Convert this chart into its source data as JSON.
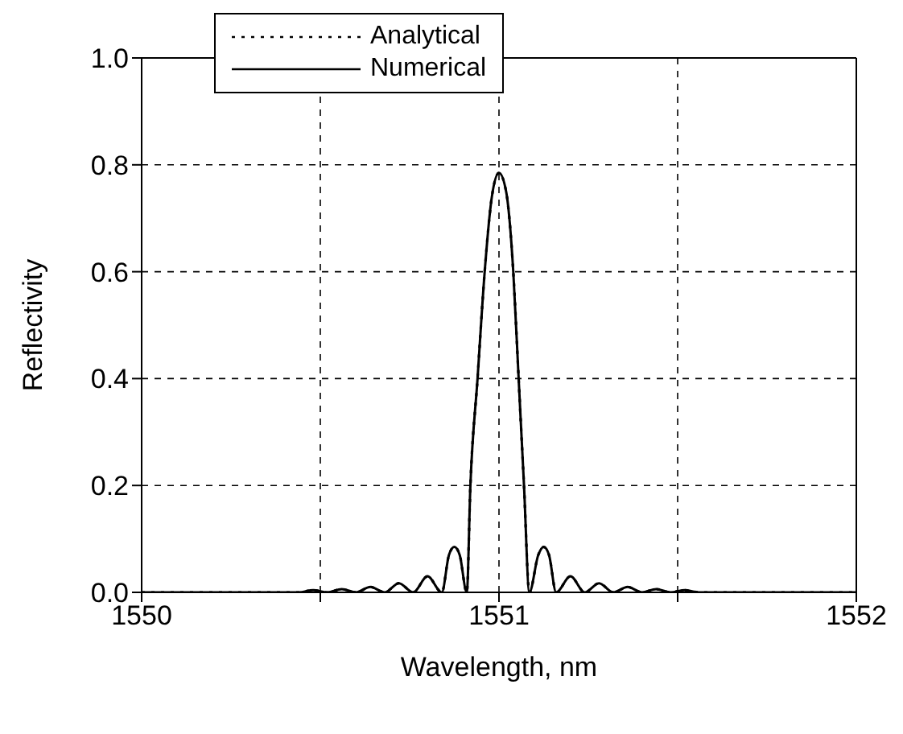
{
  "chart_data": {
    "type": "line",
    "xlabel": "Wavelength, nm",
    "ylabel": "Reflectivity",
    "x": [
      1550,
      1550.44,
      1550.48,
      1550.52,
      1550.56,
      1550.6,
      1550.64,
      1550.68,
      1550.72,
      1550.76,
      1550.8,
      1550.84,
      1550.86,
      1550.875,
      1550.89,
      1550.91,
      1550.92,
      1550.94,
      1550.96,
      1550.98,
      1551,
      1551.02,
      1551.04,
      1551.055,
      1551.07,
      1551.085,
      1551.11,
      1551.125,
      1551.14,
      1551.16,
      1551.2,
      1551.24,
      1551.28,
      1551.32,
      1551.36,
      1551.4,
      1551.44,
      1551.48,
      1551.52,
      1551.56,
      1552
    ],
    "series": [
      {
        "name": "Analytical",
        "color": "#000000",
        "line_style": "dotted",
        "values": [
          0,
          0,
          0.004,
          0,
          0.006,
          0,
          0.01,
          0,
          0.017,
          0,
          0.03,
          0,
          0.07,
          0.085,
          0.07,
          0,
          0.2,
          0.4,
          0.6,
          0.74,
          0.785,
          0.75,
          0.6,
          0.4,
          0.2,
          0,
          0.07,
          0.085,
          0.07,
          0,
          0.03,
          0,
          0.017,
          0,
          0.01,
          0,
          0.006,
          0,
          0.004,
          0,
          0
        ]
      },
      {
        "name": "Numerical",
        "color": "#000000",
        "line_style": "solid",
        "values": [
          0,
          0,
          0.004,
          0,
          0.006,
          0,
          0.01,
          0,
          0.017,
          0,
          0.03,
          0,
          0.07,
          0.085,
          0.07,
          0,
          0.2,
          0.4,
          0.6,
          0.74,
          0.785,
          0.75,
          0.6,
          0.4,
          0.2,
          0,
          0.07,
          0.085,
          0.07,
          0,
          0.03,
          0,
          0.017,
          0,
          0.01,
          0,
          0.006,
          0,
          0.004,
          0,
          0
        ]
      }
    ],
    "xlim": [
      1550,
      1552
    ],
    "xticks": [
      1550,
      {
        "value": 1550.5,
        "label": null
      },
      1551,
      {
        "value": 1551.5,
        "label": null
      },
      1552
    ],
    "ylim": [
      0,
      1
    ],
    "yticks": [
      {
        "value": 0,
        "label": "0.0"
      },
      {
        "value": 0.2,
        "label": "0.2"
      },
      {
        "value": 0.4,
        "label": "0.4"
      },
      {
        "value": 0.6,
        "label": "0.6"
      },
      {
        "value": 0.8,
        "label": "0.8"
      },
      {
        "value": 1,
        "label": "1.0"
      }
    ],
    "grid": true,
    "legend": "top left",
    "marker": "none"
  }
}
